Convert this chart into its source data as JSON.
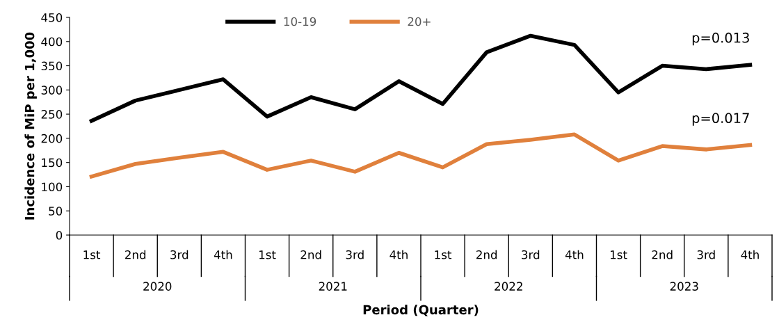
{
  "chart_data": {
    "type": "line",
    "xlabel": "Period (Quarter)",
    "ylabel": "Incidence of MiP per 1,000",
    "categories": [
      "1st",
      "2nd",
      "3rd",
      "4th",
      "1st",
      "2nd",
      "3rd",
      "4th",
      "1st",
      "2nd",
      "3rd",
      "4th",
      "1st",
      "2nd",
      "3rd",
      "4th"
    ],
    "series": [
      {
        "name": "10-19",
        "color": "#000000",
        "values": [
          236,
          278,
          300,
          322,
          245,
          285,
          260,
          318,
          271,
          378,
          412,
          393,
          295,
          350,
          343,
          352
        ]
      },
      {
        "name": "20+",
        "color": "#e0803c",
        "values": [
          121,
          147,
          160,
          172,
          135,
          154,
          131,
          170,
          140,
          188,
          197,
          208,
          154,
          184,
          177,
          186
        ]
      }
    ],
    "annotations": [
      "p=0.013",
      "p=0.017",
      "2020",
      "2021",
      "2022",
      "2023"
    ],
    "ylim": [
      0,
      450
    ],
    "yticks": [
      0,
      50,
      100,
      150,
      200,
      250,
      300,
      350,
      400,
      450
    ],
    "grid": false,
    "legend": "top",
    "marker": "none",
    "line_style": "solid"
  }
}
